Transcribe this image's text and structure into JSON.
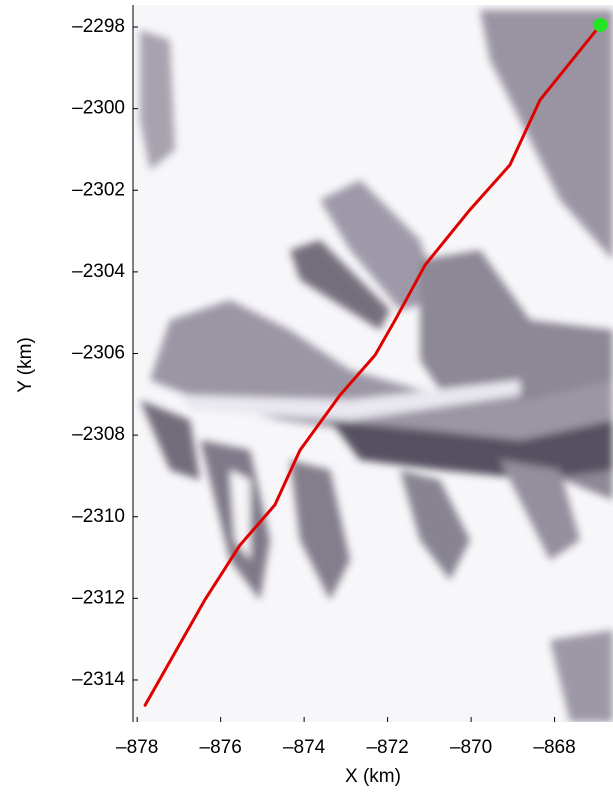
{
  "chart_data": {
    "type": "line",
    "xlabel": "X (km)",
    "ylabel": "Y (km)",
    "xlim": [
      -878.1,
      -866.6
    ],
    "ylim": [
      -2315.03,
      -2297.46
    ],
    "xticks": [
      {
        "value": -878,
        "label": "–878"
      },
      {
        "value": -876,
        "label": "–876"
      },
      {
        "value": -874,
        "label": "–874"
      },
      {
        "value": -872,
        "label": "–872"
      },
      {
        "value": -870,
        "label": "–870"
      },
      {
        "value": -868,
        "label": "–868"
      }
    ],
    "yticks": [
      {
        "value": -2298,
        "label": "–2298"
      },
      {
        "value": -2300,
        "label": "–2300"
      },
      {
        "value": -2302,
        "label": "–2302"
      },
      {
        "value": -2304,
        "label": "–2304"
      },
      {
        "value": -2306,
        "label": "–2306"
      },
      {
        "value": -2308,
        "label": "–2308"
      },
      {
        "value": -2310,
        "label": "–2310"
      },
      {
        "value": -2312,
        "label": "–2312"
      },
      {
        "value": -2314,
        "label": "–2314"
      }
    ],
    "series": [
      {
        "color": "#e00000",
        "start_marker_color": "#22e622",
        "x": [
          -866.9,
          -868.35,
          -869.07,
          -870.03,
          -871.1,
          -871.82,
          -872.3,
          -873.14,
          -874.1,
          -874.7,
          -875.54,
          -876.38,
          -877.81
        ],
        "values": [
          -2297.95,
          -2299.79,
          -2301.38,
          -2302.48,
          -2303.83,
          -2305.18,
          -2306.04,
          -2307.02,
          -2308.37,
          -2309.71,
          -2310.7,
          -2312.04,
          -2314.62
        ]
      }
    ]
  }
}
